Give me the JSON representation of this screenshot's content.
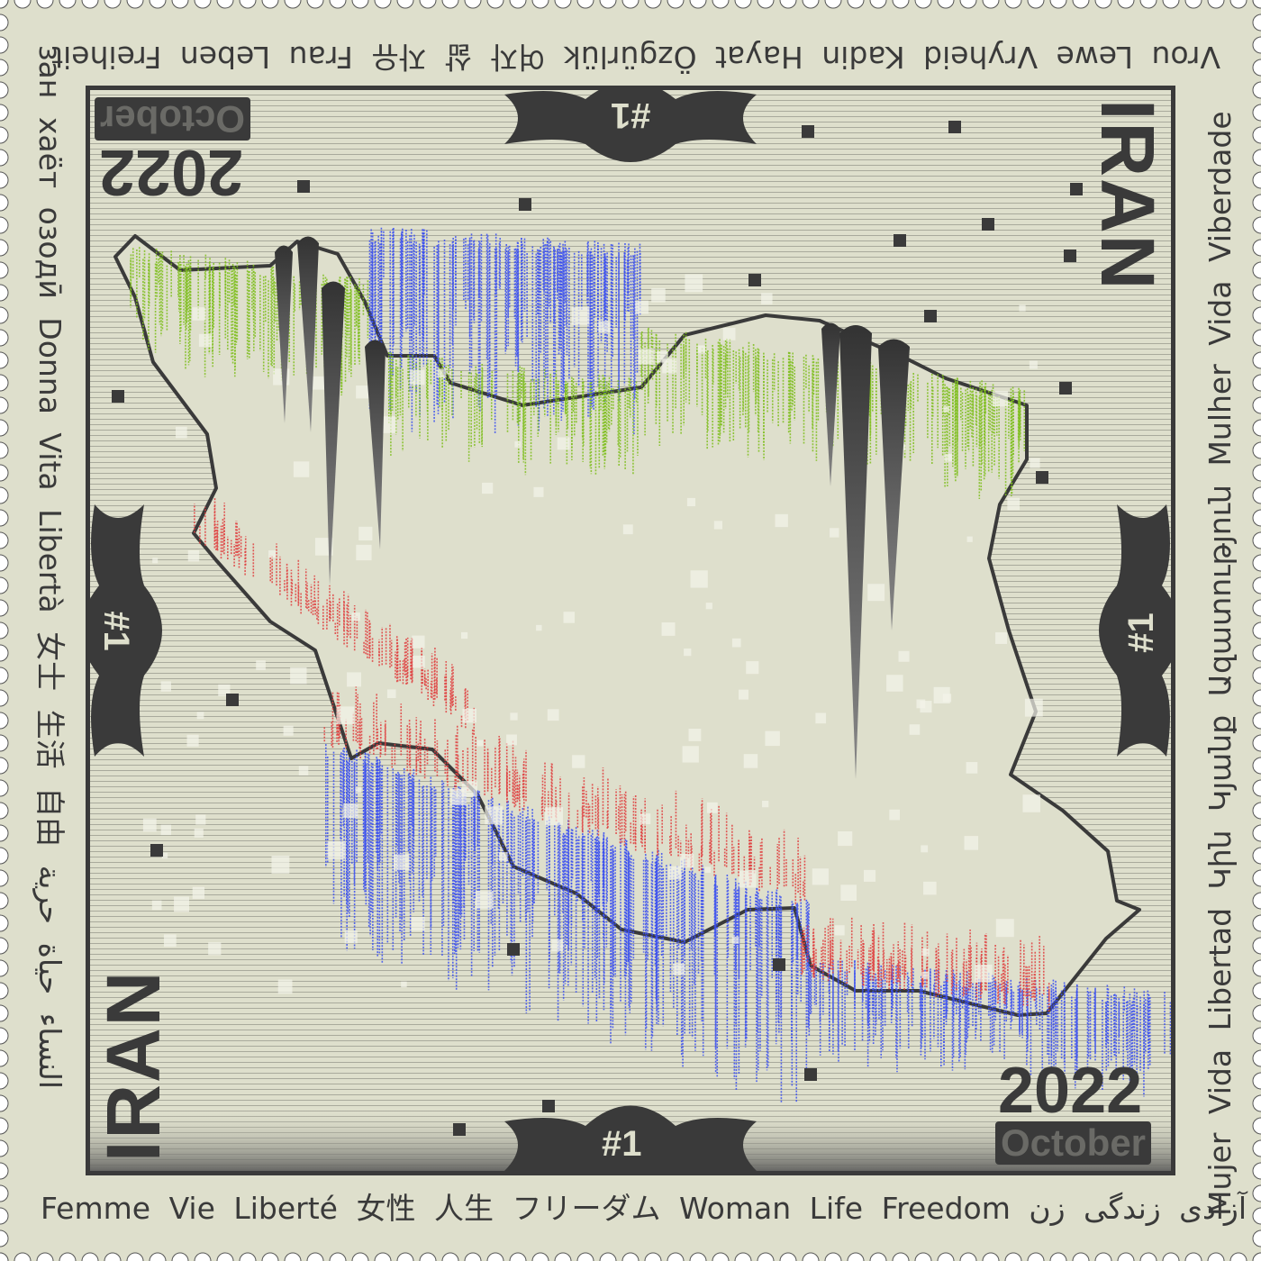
{
  "texts": {
    "bottom": "Femme Vie Liberté 女性 人生 フリーダム Woman Life Freedom آزادی زندگی زن",
    "right": "Mujer Vida Libertad Կին Կյանք Ազատություն Mulher Vida Viberdade",
    "top": "Vrou Lewe Vryheid Kadin Hayat Özgürlük 여자 삶 자유 Frau Leben Freiheit",
    "left": "зан хаёт озодӣ Donna Vita Libertà 女士 生活 自由 النساء حياة حرية"
  },
  "country": "IRAN",
  "year": "2022",
  "month": "October",
  "number": "#1",
  "colors": {
    "paper": "#dedfcc",
    "ink": "#3a3a3a",
    "green": "#7fbf1f",
    "blue": "#3a4ff0",
    "red": "#e04040"
  }
}
